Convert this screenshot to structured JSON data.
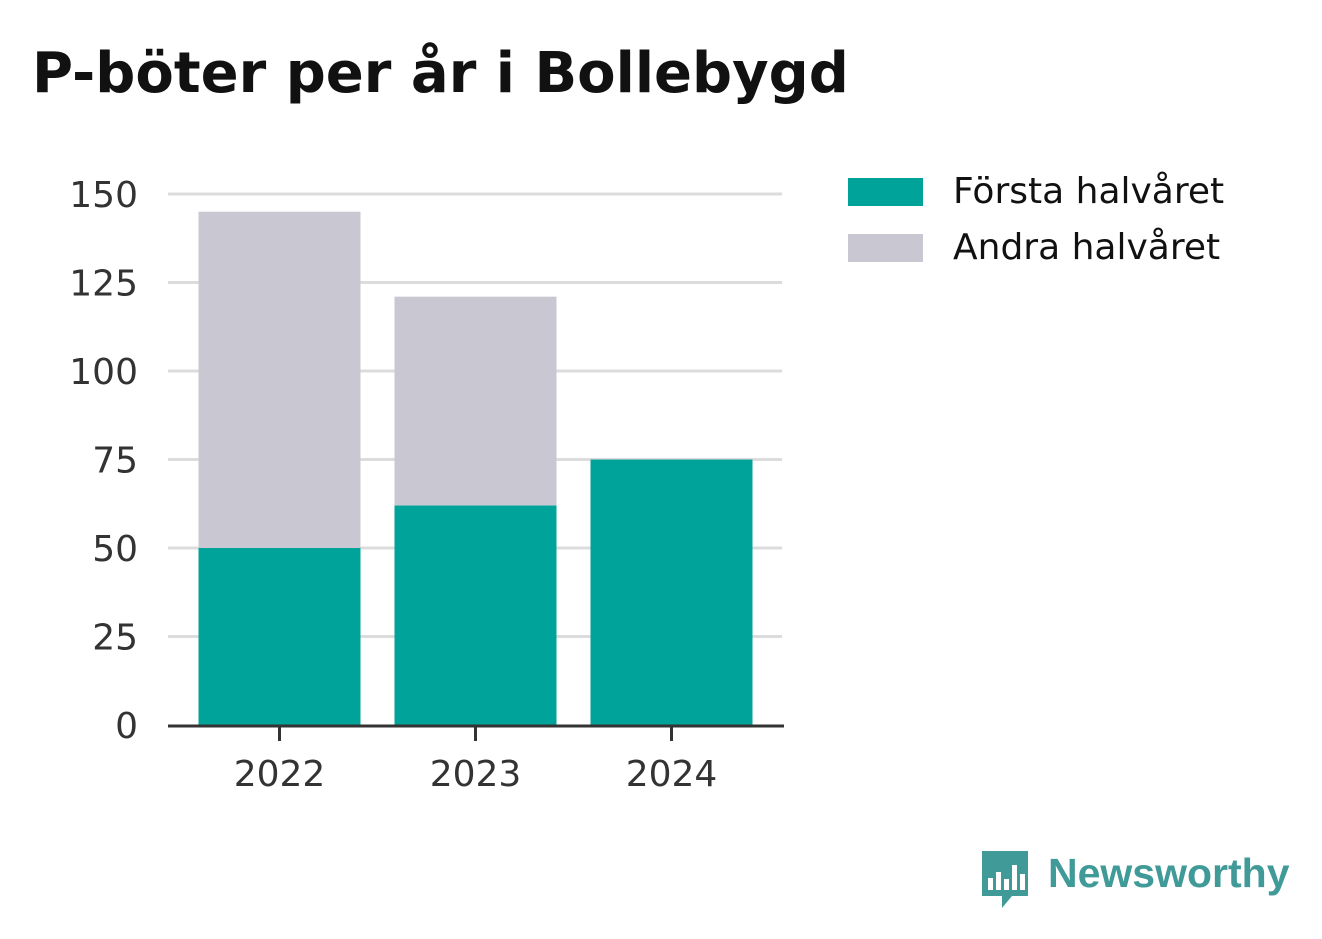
{
  "chart_data": {
    "type": "bar",
    "stacked": true,
    "title": "P-böter per år i Bollebygd",
    "xlabel": "",
    "ylabel": "",
    "categories": [
      "2022",
      "2023",
      "2024"
    ],
    "series": [
      {
        "name": "Första halvåret",
        "color": "#00a39a",
        "values": [
          50,
          62,
          75
        ]
      },
      {
        "name": "Andra halvåret",
        "color": "#c8c7d2",
        "values": [
          95,
          59,
          0
        ]
      }
    ],
    "ylim": [
      0,
      150
    ],
    "yticks": [
      "0",
      "25",
      "50",
      "75",
      "100",
      "125",
      "150"
    ],
    "grid": true,
    "legend_position": "right"
  },
  "brand": {
    "name": "Newsworthy",
    "color": "#3f9a98"
  }
}
